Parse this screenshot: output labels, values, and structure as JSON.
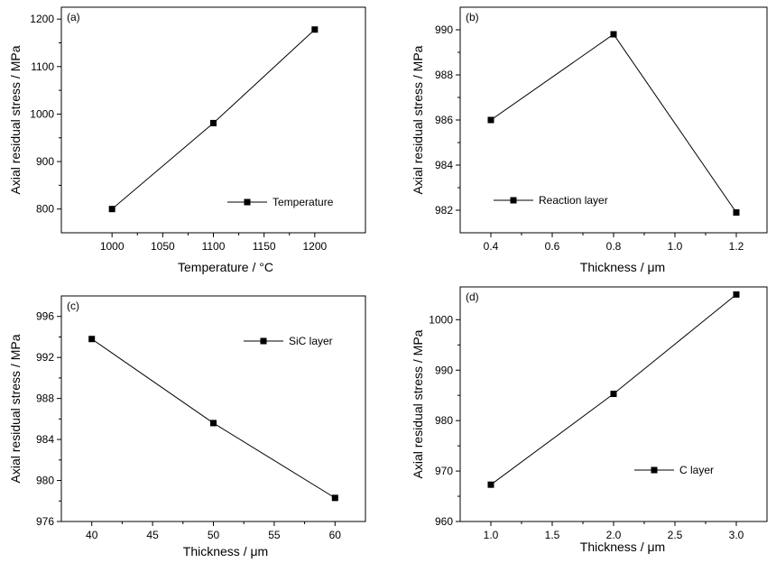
{
  "chart_data": [
    {
      "type": "line",
      "panel_label": "(a)",
      "xlabel": "Temperature / °C",
      "ylabel": "Axial residual stress / MPa",
      "xlim": [
        950,
        1250
      ],
      "ylim": [
        750,
        1225
      ],
      "xticks": [
        1000,
        1050,
        1100,
        1150,
        1200
      ],
      "yticks": [
        800,
        900,
        1000,
        1100,
        1200
      ],
      "legend_position": "lower-right",
      "series": [
        {
          "name": "Temperature",
          "marker": "square",
          "x": [
            1000,
            1100,
            1200
          ],
          "y": [
            800,
            981,
            1178
          ]
        }
      ]
    },
    {
      "type": "line",
      "panel_label": "(b)",
      "xlabel": "Thickness / μm",
      "ylabel": "Axial residual stress / MPa",
      "xlim": [
        0.3,
        1.3
      ],
      "ylim": [
        981.0,
        991.0
      ],
      "xticks": [
        0.4,
        0.6,
        0.8,
        1.0,
        1.2
      ],
      "yticks": [
        982,
        984,
        986,
        988,
        990
      ],
      "legend_position": "lower-left",
      "series": [
        {
          "name": "Reaction layer",
          "marker": "square",
          "x": [
            0.4,
            0.8,
            1.2
          ],
          "y": [
            986.0,
            989.8,
            981.9
          ]
        }
      ]
    },
    {
      "type": "line",
      "panel_label": "(c)",
      "xlabel": "Thickness / μm",
      "ylabel": "Axial residual stress / MPa",
      "xlim": [
        37.5,
        62.5
      ],
      "ylim": [
        976,
        998
      ],
      "xticks": [
        40,
        45,
        50,
        55,
        60
      ],
      "yticks": [
        976,
        980,
        984,
        988,
        992,
        996
      ],
      "legend_position": "top-right",
      "series": [
        {
          "name": "SiC layer",
          "marker": "square",
          "x": [
            40,
            50,
            60
          ],
          "y": [
            993.8,
            985.6,
            978.3
          ]
        }
      ]
    },
    {
      "type": "line",
      "panel_label": "(d)",
      "xlabel": "Thickness / μm",
      "ylabel": "Axial residual stress / MPa",
      "xlim": [
        0.75,
        3.25
      ],
      "ylim": [
        960,
        1006.5
      ],
      "xticks": [
        1.0,
        1.5,
        2.0,
        2.5,
        3.0
      ],
      "yticks": [
        960,
        970,
        980,
        990,
        1000
      ],
      "legend_position": "lower-right",
      "series": [
        {
          "name": "C layer",
          "marker": "square",
          "x": [
            1.0,
            2.0,
            3.0
          ],
          "y": [
            967.3,
            985.3,
            1005.0
          ]
        }
      ]
    }
  ]
}
